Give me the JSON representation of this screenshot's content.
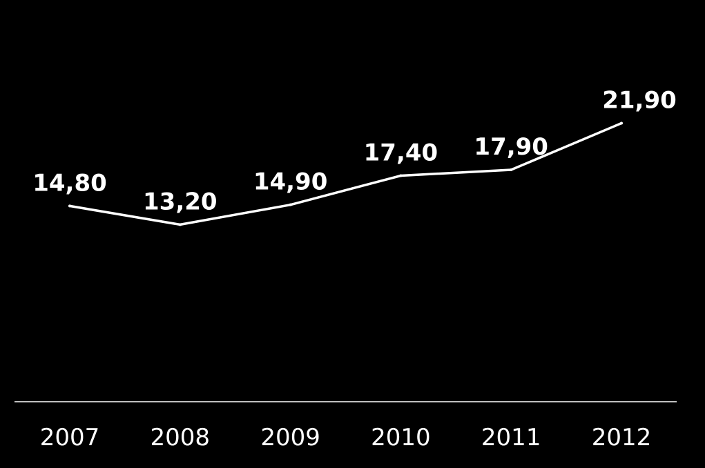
{
  "chart_data": {
    "type": "line",
    "categories": [
      "2007",
      "2008",
      "2009",
      "2010",
      "2011",
      "2012"
    ],
    "series": [
      {
        "values": [
          14.8,
          13.2,
          14.9,
          17.4,
          17.9,
          21.9
        ],
        "labels": [
          "14,80",
          "13,20",
          "14,90",
          "17,40",
          "17,90",
          "21,90"
        ]
      }
    ],
    "title": "",
    "xlabel": "",
    "ylabel": "",
    "ylim": [
      0,
      30
    ],
    "grid": false,
    "legend": "none"
  },
  "colors": {
    "background": "#000000",
    "line": "#ffffff",
    "axis": "#ffffff",
    "text": "#ffffff"
  }
}
